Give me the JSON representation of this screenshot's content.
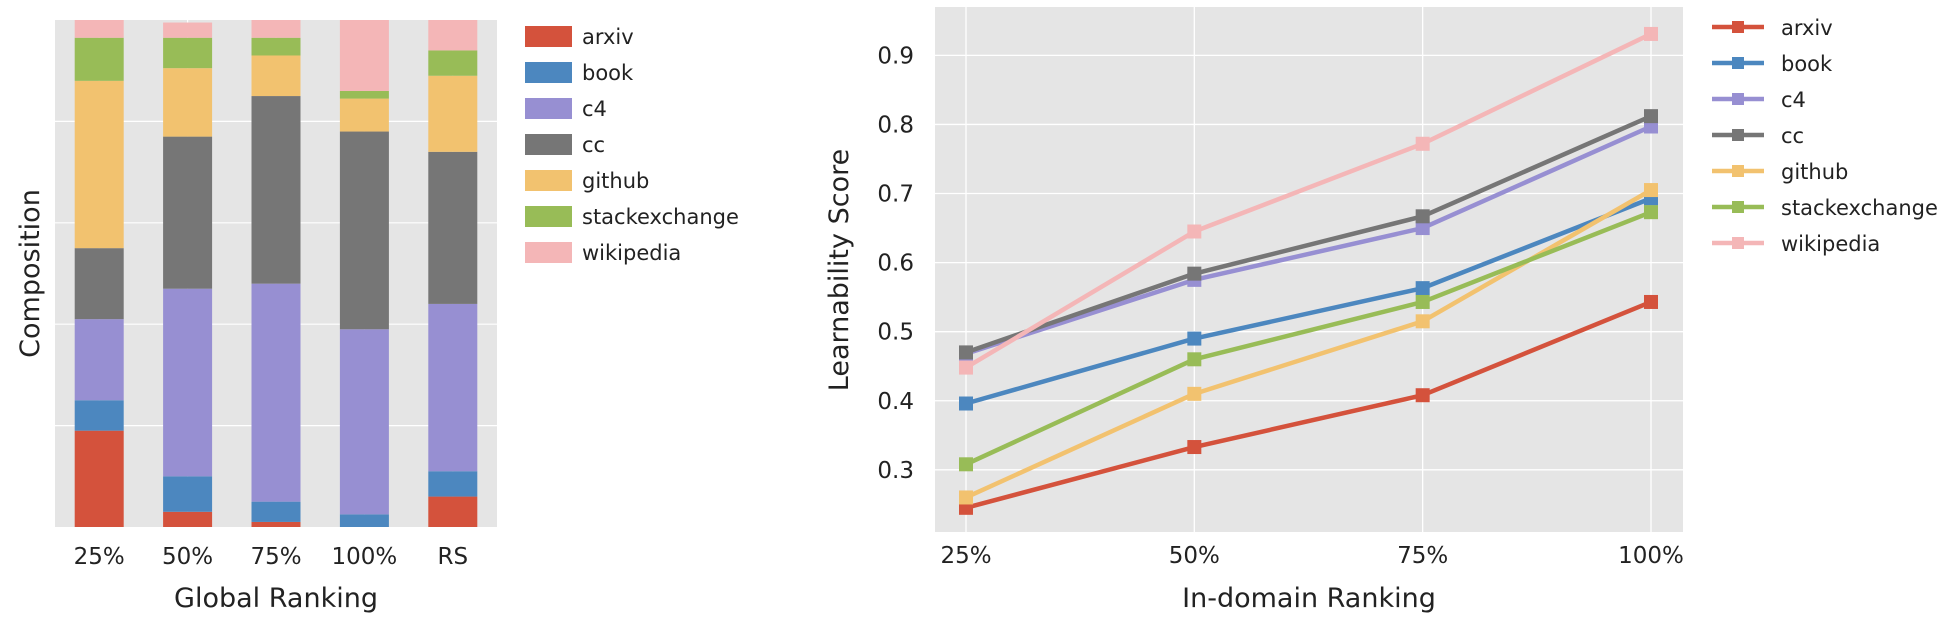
{
  "colors": {
    "arxiv": "#d4523c",
    "book": "#4c87bf",
    "c4": "#978fd2",
    "cc": "#767676",
    "github": "#f2c26f",
    "stackexchange": "#98bc57",
    "wikipedia": "#f4b6b7",
    "plot_bg": "#e5e5e5",
    "grid": "#ffffff"
  },
  "chart_data": [
    {
      "type": "bar",
      "stacked": true,
      "title": "",
      "xlabel": "Global Ranking",
      "ylabel": "Composition",
      "categories": [
        "25%",
        "50%",
        "75%",
        "100%",
        "RS"
      ],
      "ylim": [
        0,
        1
      ],
      "y_tick_labels_shown": false,
      "grid": true,
      "legend": "outside-right",
      "series": [
        {
          "name": "arxiv",
          "values": [
            0.19,
            0.03,
            0.01,
            0.0,
            0.06
          ]
        },
        {
          "name": "book",
          "values": [
            0.06,
            0.07,
            0.04,
            0.025,
            0.05
          ]
        },
        {
          "name": "c4",
          "values": [
            0.16,
            0.37,
            0.43,
            0.365,
            0.33
          ]
        },
        {
          "name": "cc",
          "values": [
            0.14,
            0.3,
            0.37,
            0.39,
            0.3
          ]
        },
        {
          "name": "github",
          "values": [
            0.33,
            0.135,
            0.08,
            0.065,
            0.15
          ]
        },
        {
          "name": "stackexchange",
          "values": [
            0.085,
            0.06,
            0.035,
            0.015,
            0.05
          ]
        },
        {
          "name": "wikipedia",
          "values": [
            0.035,
            0.03,
            0.035,
            0.14,
            0.06
          ]
        }
      ]
    },
    {
      "type": "line",
      "title": "",
      "xlabel": "In-domain Ranking",
      "ylabel": "Learnability Score",
      "categories": [
        "25%",
        "50%",
        "75%",
        "100%"
      ],
      "ylim": [
        0.21,
        0.97
      ],
      "yticks": [
        0.3,
        0.4,
        0.5,
        0.6,
        0.7,
        0.8,
        0.9
      ],
      "ytick_labels": [
        "0.3",
        "0.4",
        "0.5",
        "0.6",
        "0.7",
        "0.8",
        "0.9"
      ],
      "grid": true,
      "marker": "square",
      "legend": "outside-right",
      "series": [
        {
          "name": "arxiv",
          "values": [
            0.245,
            0.333,
            0.408,
            0.543
          ]
        },
        {
          "name": "book",
          "values": [
            0.396,
            0.49,
            0.563,
            0.693
          ]
        },
        {
          "name": "c4",
          "values": [
            0.468,
            0.575,
            0.65,
            0.797
          ]
        },
        {
          "name": "cc",
          "values": [
            0.47,
            0.584,
            0.667,
            0.812
          ]
        },
        {
          "name": "github",
          "values": [
            0.26,
            0.41,
            0.515,
            0.705
          ]
        },
        {
          "name": "stackexchange",
          "values": [
            0.308,
            0.46,
            0.543,
            0.673
          ]
        },
        {
          "name": "wikipedia",
          "values": [
            0.448,
            0.645,
            0.772,
            0.931
          ]
        }
      ]
    }
  ]
}
